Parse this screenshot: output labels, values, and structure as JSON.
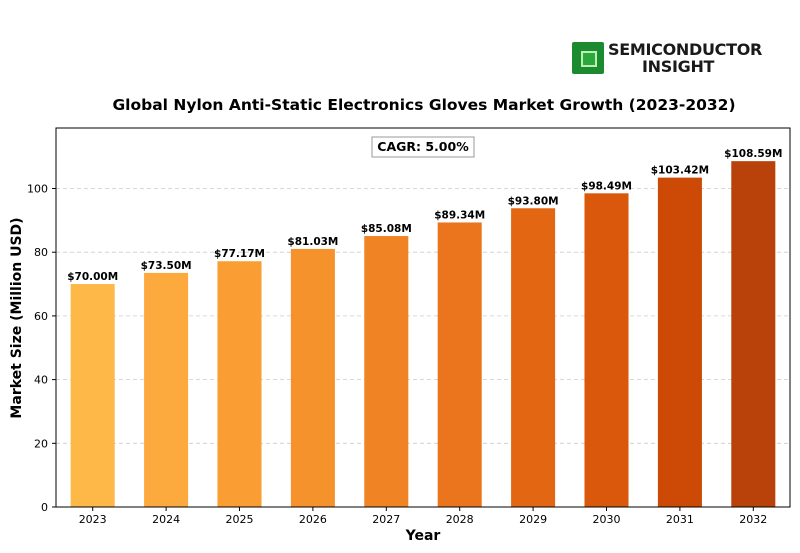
{
  "logo": {
    "line1": "SEMICONDUCTOR",
    "line2": "INSIGHT"
  },
  "chart_data": {
    "type": "bar",
    "title": "Global Nylon Anti-Static Electronics Gloves Market Growth (2023-2032)",
    "xlabel": "Year",
    "ylabel": "Market Size (Million USD)",
    "annotation": "CAGR: 5.00%",
    "categories": [
      "2023",
      "2024",
      "2025",
      "2026",
      "2027",
      "2028",
      "2029",
      "2030",
      "2031",
      "2032"
    ],
    "values": [
      70.0,
      73.5,
      77.17,
      81.03,
      85.08,
      89.34,
      93.8,
      98.49,
      103.42,
      108.59
    ],
    "data_labels": [
      "$70.00M",
      "$73.50M",
      "$77.17M",
      "$81.03M",
      "$85.08M",
      "$89.34M",
      "$93.80M",
      "$98.49M",
      "$103.42M",
      "$108.59M"
    ],
    "ylim": [
      0,
      119
    ],
    "yticks": [
      0,
      20,
      40,
      60,
      80,
      100
    ],
    "grid": "horizontal dashed",
    "colors": [
      "#FDB847",
      "#FCAA3E",
      "#FA9E33",
      "#F6922B",
      "#F08424",
      "#EA751C",
      "#E36613",
      "#DA580C",
      "#CC4906",
      "#B8420A"
    ]
  }
}
